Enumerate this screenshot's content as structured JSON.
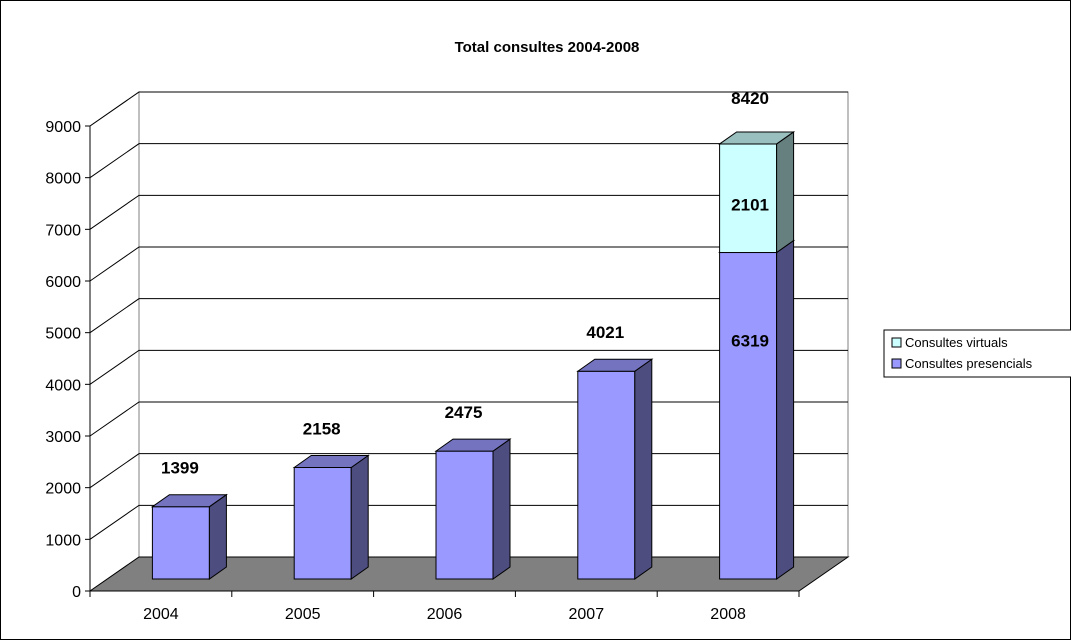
{
  "chart_data": {
    "type": "bar",
    "stacked": true,
    "title": "Total consultes 2004-2008",
    "categories": [
      "2004",
      "2005",
      "2006",
      "2007",
      "2008"
    ],
    "series": [
      {
        "name": "Consultes presencials",
        "values": [
          1399,
          2158,
          2475,
          4021,
          6319
        ],
        "color": "#9999ff"
      },
      {
        "name": "Consultes virtuals",
        "values": [
          0,
          0,
          0,
          0,
          2101
        ],
        "color": "#ccffff"
      }
    ],
    "data_labels": {
      "presencials": [
        "1399",
        "2158",
        "2475",
        "4021",
        "6319"
      ],
      "virtuals": [
        "",
        "",
        "",
        "",
        "2101"
      ]
    },
    "total_labels": [
      "",
      "",
      "",
      "",
      "8420"
    ],
    "yticks": [
      "0",
      "1000",
      "2000",
      "3000",
      "4000",
      "5000",
      "6000",
      "7000",
      "8000",
      "9000"
    ],
    "ylim": [
      0,
      9000
    ],
    "xlabel": "",
    "ylabel": "",
    "grid": true,
    "legend_position": "right",
    "legend": [
      "Consultes virtuals",
      "Consultes presencials"
    ],
    "style": "3d-column",
    "floor_color": "#808080"
  }
}
